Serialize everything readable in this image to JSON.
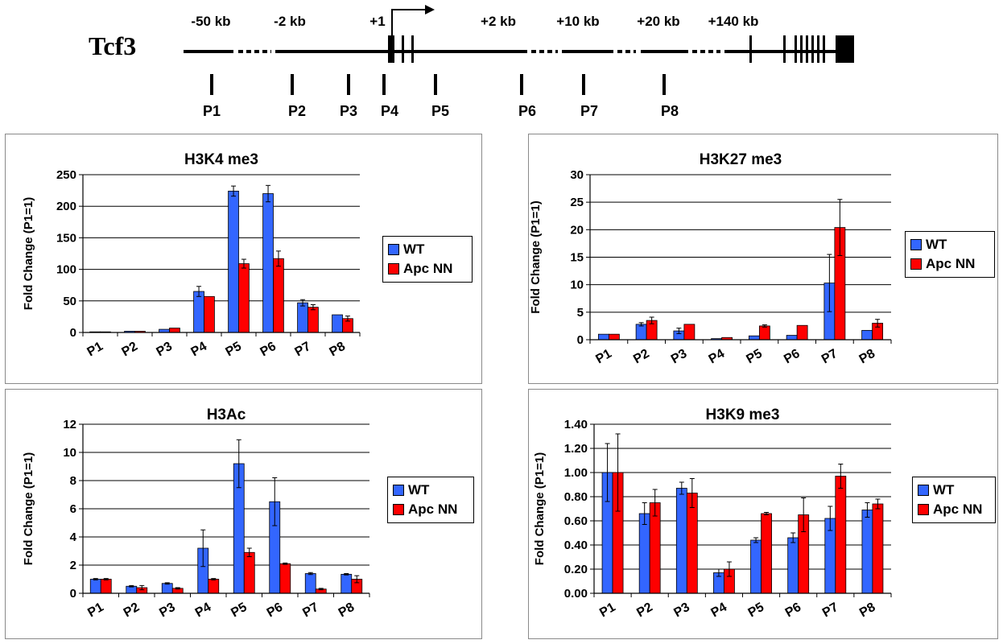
{
  "gene": {
    "name": "Tcf3",
    "distances": [
      "-50 kb",
      "-2 kb",
      "+1",
      "+2 kb",
      "+10 kb",
      "+20 kb",
      "+140 kb"
    ],
    "probes": [
      "P1",
      "P2",
      "P3",
      "P4",
      "P5",
      "P6",
      "P7",
      "P8"
    ]
  },
  "colors": {
    "wt": "#3366ff",
    "apc": "#ff0000",
    "grid": "#000000"
  },
  "legend": {
    "wt": "WT",
    "apc": "Apc NN"
  },
  "chart_data": [
    {
      "type": "bar",
      "title": "H3K4 me3",
      "ylabel": "Fold Change (P1=1)",
      "categories": [
        "P1",
        "P2",
        "P3",
        "P4",
        "P5",
        "P6",
        "P7",
        "P8"
      ],
      "ylim": [
        0,
        250
      ],
      "yticks": [
        "0",
        "50",
        "100",
        "150",
        "200",
        "250"
      ],
      "ytick_values": [
        0,
        50,
        100,
        150,
        200,
        250
      ],
      "series": [
        {
          "name": "WT",
          "values": [
            1,
            2,
            5,
            65,
            224,
            220,
            47,
            28
          ],
          "errors": [
            0,
            0,
            0,
            8,
            8,
            13,
            5,
            0
          ]
        },
        {
          "name": "Apc NN",
          "values": [
            1,
            2,
            7,
            57,
            109,
            117,
            40,
            22
          ],
          "errors": [
            0,
            0,
            0,
            0,
            7,
            12,
            4,
            4
          ]
        }
      ]
    },
    {
      "type": "bar",
      "title": "H3K27 me3",
      "ylabel": "Fold Change (P1=1)",
      "categories": [
        "P1",
        "P2",
        "P3",
        "P4",
        "P5",
        "P6",
        "P7",
        "P8"
      ],
      "ylim": [
        0,
        30
      ],
      "yticks": [
        "0",
        "5",
        "10",
        "15",
        "20",
        "25",
        "30"
      ],
      "ytick_values": [
        0,
        5,
        10,
        15,
        20,
        25,
        30
      ],
      "series": [
        {
          "name": "WT",
          "values": [
            1,
            2.8,
            1.6,
            0.2,
            0.7,
            0.8,
            10.3,
            1.7
          ],
          "errors": [
            0,
            0.3,
            0.5,
            0,
            0,
            0,
            5.2,
            0
          ]
        },
        {
          "name": "Apc NN",
          "values": [
            1,
            3.5,
            2.8,
            0.4,
            2.5,
            2.6,
            20.4,
            3.0
          ],
          "errors": [
            0,
            0.6,
            0,
            0,
            0.2,
            0,
            5.1,
            0.7
          ]
        }
      ]
    },
    {
      "type": "bar",
      "title": "H3Ac",
      "ylabel": "Fold Change (P1=1)",
      "categories": [
        "P1",
        "P2",
        "P3",
        "P4",
        "P5",
        "P6",
        "P7",
        "P8"
      ],
      "ylim": [
        0,
        12
      ],
      "yticks": [
        "0",
        "2",
        "4",
        "6",
        "8",
        "10",
        "12"
      ],
      "ytick_values": [
        0,
        2,
        4,
        6,
        8,
        10,
        12
      ],
      "series": [
        {
          "name": "WT",
          "values": [
            1,
            0.5,
            0.7,
            3.2,
            9.2,
            6.5,
            1.4,
            1.35
          ],
          "errors": [
            0.05,
            0.05,
            0.05,
            1.3,
            1.7,
            1.7,
            0.07,
            0.05
          ]
        },
        {
          "name": "Apc NN",
          "values": [
            1,
            0.4,
            0.35,
            1.0,
            2.9,
            2.1,
            0.3,
            1.0
          ],
          "errors": [
            0.05,
            0.15,
            0.05,
            0.05,
            0.3,
            0.05,
            0.05,
            0.25
          ]
        }
      ]
    },
    {
      "type": "bar",
      "title": "H3K9 me3",
      "ylabel": "Fold Change (P1=1)",
      "categories": [
        "P1",
        "P2",
        "P3",
        "P4",
        "P5",
        "P6",
        "P7",
        "P8"
      ],
      "ylim": [
        0,
        1.4
      ],
      "yticks": [
        "0.00",
        "0.20",
        "0.40",
        "0.60",
        "0.80",
        "1.00",
        "1.20",
        "1.40"
      ],
      "ytick_values": [
        0,
        0.2,
        0.4,
        0.6,
        0.8,
        1.0,
        1.2,
        1.4
      ],
      "series": [
        {
          "name": "WT",
          "values": [
            1.0,
            0.66,
            0.87,
            0.17,
            0.44,
            0.46,
            0.62,
            0.69
          ],
          "errors": [
            0.24,
            0.09,
            0.05,
            0.03,
            0.02,
            0.04,
            0.1,
            0.06
          ]
        },
        {
          "name": "Apc NN",
          "values": [
            1.0,
            0.75,
            0.83,
            0.2,
            0.66,
            0.65,
            0.97,
            0.74
          ],
          "errors": [
            0.32,
            0.11,
            0.12,
            0.06,
            0.01,
            0.14,
            0.1,
            0.04
          ]
        }
      ]
    }
  ]
}
